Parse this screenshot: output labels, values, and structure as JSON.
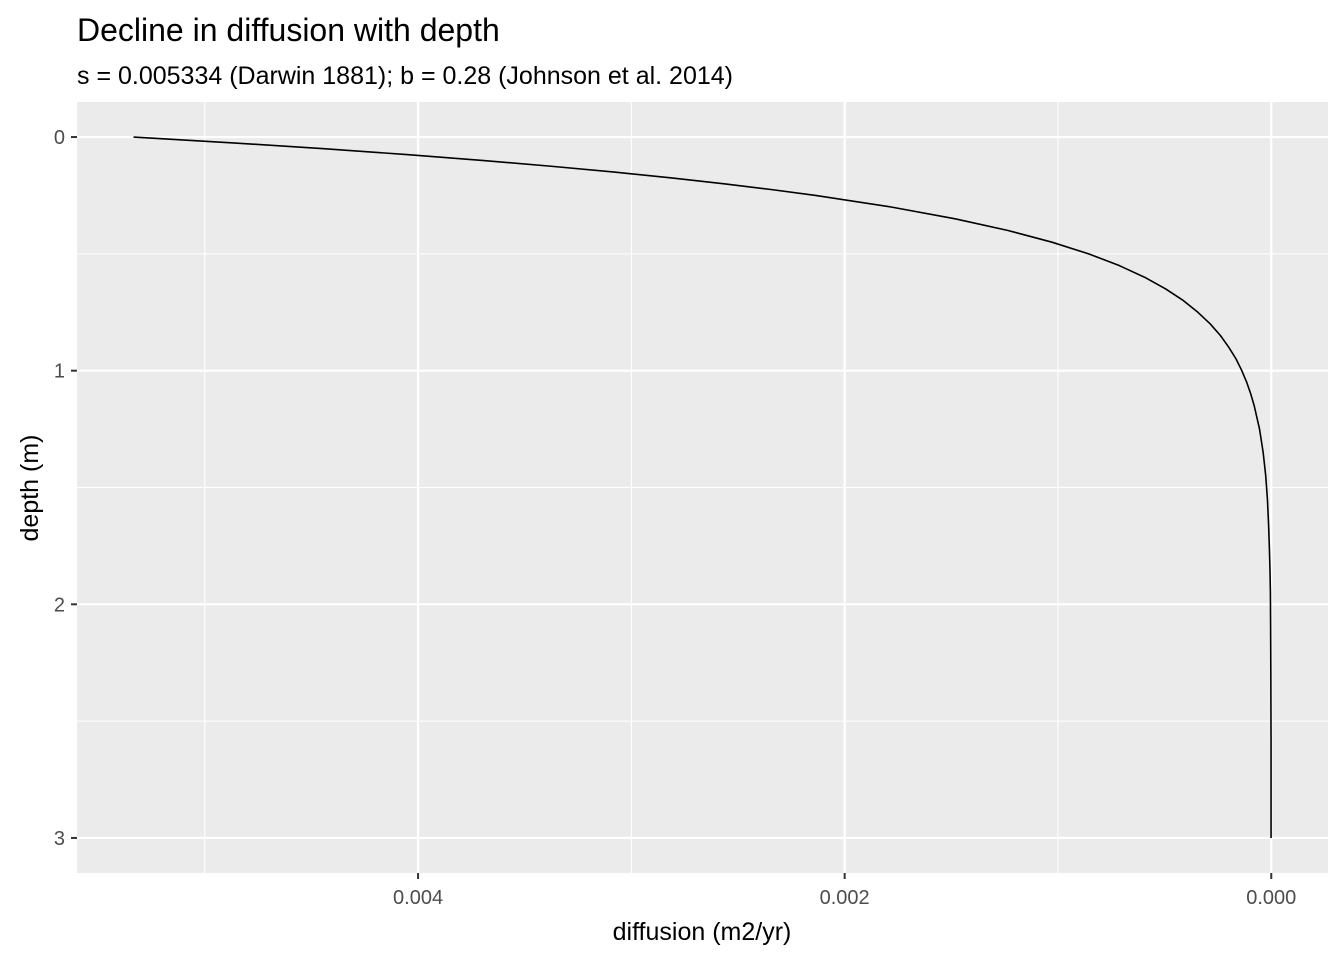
{
  "chart_data": {
    "type": "line",
    "title": "Decline in diffusion with depth",
    "subtitle": "s = 0.005334 (Darwin 1881); b = 0.28 (Johnson et al. 2014)",
    "xlabel": "diffusion (m2/yr)",
    "ylabel": "depth (m)",
    "x_reversed": true,
    "y_reversed": true,
    "xlim": [
      0.005599,
      -0.000266
    ],
    "ylim": [
      3.15,
      -0.15
    ],
    "x_major_ticks": [
      0.004,
      0.002,
      0.0
    ],
    "x_tick_labels": [
      "0.004",
      "0.002",
      "0.000"
    ],
    "x_minor_ticks": [
      0.005,
      0.003,
      0.001
    ],
    "y_major_ticks": [
      0,
      1,
      2,
      3
    ],
    "y_tick_labels": [
      "0",
      "1",
      "2",
      "3"
    ],
    "y_minor_ticks": [
      0.5,
      1.5,
      2.5
    ],
    "grid": true,
    "background": "#EBEBEB",
    "grid_color": "#FFFFFF",
    "line_color": "#000000",
    "series": [
      {
        "x": [
          0.005334,
          0.004867,
          0.004442,
          0.004053,
          0.003699,
          0.003376,
          0.00308,
          0.002811,
          0.002565,
          0.002341,
          0.002136,
          0.001779,
          0.001482,
          0.001234,
          0.001028,
          0.000856,
          0.000713,
          0.000594,
          0.000495,
          0.000412,
          0.000344,
          0.000286,
          0.000238,
          0.000199,
          0.000165,
          0.000138,
          0.000115,
          9.6e-05,
          8e-05,
          5.5e-05,
          3.8e-05,
          2.6e-05,
          1.8e-05,
          1.3e-05,
          9e-06,
          6e-06,
          4e-06,
          3e-06,
          2e-06,
          1e-06,
          1e-06
        ],
        "y": [
          0.0,
          0.025,
          0.05,
          0.075,
          0.1,
          0.125,
          0.15,
          0.175,
          0.2,
          0.225,
          0.25,
          0.3,
          0.35,
          0.4,
          0.45,
          0.5,
          0.55,
          0.6,
          0.65,
          0.7,
          0.75,
          0.8,
          0.85,
          0.9,
          0.95,
          1.0,
          1.05,
          1.1,
          1.15,
          1.25,
          1.35,
          1.45,
          1.55,
          1.65,
          1.75,
          1.85,
          1.95,
          2.1,
          2.3,
          2.6,
          3.0
        ]
      }
    ]
  }
}
